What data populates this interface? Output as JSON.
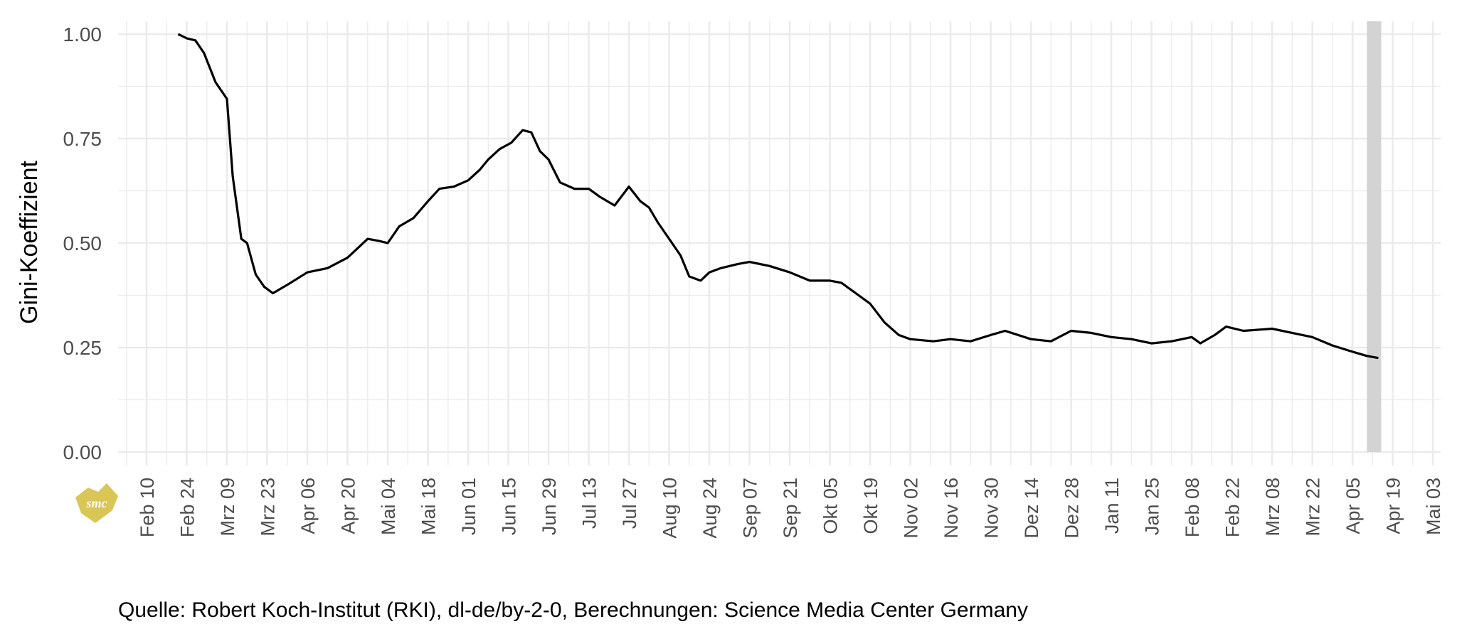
{
  "chart_data": {
    "type": "line",
    "title": "",
    "xlabel": "",
    "ylabel": "Gini-Koeffizient",
    "ylim": [
      0,
      1
    ],
    "yticks": [
      "0.00",
      "0.25",
      "0.50",
      "0.75",
      "1.00"
    ],
    "ytick_values": [
      0,
      0.25,
      0.5,
      0.75,
      1.0
    ],
    "xlim": [
      "2020-02-03",
      "2021-05-10"
    ],
    "grid": true,
    "xtick_dates": [
      "2020-02-10",
      "2020-02-24",
      "2020-03-09",
      "2020-03-23",
      "2020-04-06",
      "2020-04-20",
      "2020-05-04",
      "2020-05-18",
      "2020-06-01",
      "2020-06-15",
      "2020-06-29",
      "2020-07-13",
      "2020-07-27",
      "2020-08-10",
      "2020-08-24",
      "2020-09-07",
      "2020-09-21",
      "2020-10-05",
      "2020-10-19",
      "2020-11-02",
      "2020-11-16",
      "2020-11-30",
      "2020-12-14",
      "2020-12-28",
      "2021-01-11",
      "2021-01-25",
      "2021-02-08",
      "2021-02-22",
      "2021-03-08",
      "2021-03-22",
      "2021-04-05",
      "2021-04-19",
      "2021-05-03"
    ],
    "xtick_labels": [
      "Feb 10",
      "Feb 24",
      "Mrz 09",
      "Mrz 23",
      "Apr 06",
      "Apr 20",
      "Mai 04",
      "Mai 18",
      "Jun 01",
      "Jun 15",
      "Jun 29",
      "Jul 13",
      "Jul 27",
      "Aug 10",
      "Aug 24",
      "Sep 07",
      "Sep 21",
      "Okt 05",
      "Okt 19",
      "Nov 02",
      "Nov 16",
      "Nov 30",
      "Dez 14",
      "Dez 28",
      "Jan 11",
      "Jan 25",
      "Feb 08",
      "Feb 22",
      "Mrz 08",
      "Mrz 22",
      "Apr 05",
      "Apr 19",
      "Mai 03"
    ],
    "shaded_range": [
      "2021-04-10",
      "2021-04-15"
    ],
    "series": [
      {
        "name": "Gini-Koeffizient",
        "color": "#000000",
        "points": [
          [
            "2020-02-21",
            1.0
          ],
          [
            "2020-02-24",
            0.99
          ],
          [
            "2020-02-27",
            0.985
          ],
          [
            "2020-03-01",
            0.955
          ],
          [
            "2020-03-05",
            0.885
          ],
          [
            "2020-03-09",
            0.845
          ],
          [
            "2020-03-11",
            0.66
          ],
          [
            "2020-03-14",
            0.51
          ],
          [
            "2020-03-16",
            0.5
          ],
          [
            "2020-03-19",
            0.425
          ],
          [
            "2020-03-22",
            0.395
          ],
          [
            "2020-03-25",
            0.38
          ],
          [
            "2020-03-30",
            0.4
          ],
          [
            "2020-04-06",
            0.43
          ],
          [
            "2020-04-13",
            0.44
          ],
          [
            "2020-04-20",
            0.465
          ],
          [
            "2020-04-27",
            0.51
          ],
          [
            "2020-05-01",
            0.505
          ],
          [
            "2020-05-04",
            0.5
          ],
          [
            "2020-05-08",
            0.54
          ],
          [
            "2020-05-13",
            0.56
          ],
          [
            "2020-05-18",
            0.6
          ],
          [
            "2020-05-22",
            0.63
          ],
          [
            "2020-05-27",
            0.635
          ],
          [
            "2020-06-01",
            0.65
          ],
          [
            "2020-06-05",
            0.675
          ],
          [
            "2020-06-08",
            0.7
          ],
          [
            "2020-06-12",
            0.725
          ],
          [
            "2020-06-16",
            0.74
          ],
          [
            "2020-06-20",
            0.77
          ],
          [
            "2020-06-23",
            0.765
          ],
          [
            "2020-06-26",
            0.72
          ],
          [
            "2020-06-29",
            0.7
          ],
          [
            "2020-07-03",
            0.645
          ],
          [
            "2020-07-08",
            0.63
          ],
          [
            "2020-07-13",
            0.63
          ],
          [
            "2020-07-17",
            0.61
          ],
          [
            "2020-07-22",
            0.59
          ],
          [
            "2020-07-27",
            0.635
          ],
          [
            "2020-07-31",
            0.6
          ],
          [
            "2020-08-03",
            0.585
          ],
          [
            "2020-08-06",
            0.55
          ],
          [
            "2020-08-10",
            0.51
          ],
          [
            "2020-08-14",
            0.47
          ],
          [
            "2020-08-17",
            0.42
          ],
          [
            "2020-08-21",
            0.41
          ],
          [
            "2020-08-24",
            0.43
          ],
          [
            "2020-08-28",
            0.44
          ],
          [
            "2020-09-03",
            0.45
          ],
          [
            "2020-09-07",
            0.455
          ],
          [
            "2020-09-14",
            0.445
          ],
          [
            "2020-09-21",
            0.43
          ],
          [
            "2020-09-28",
            0.41
          ],
          [
            "2020-10-05",
            0.41
          ],
          [
            "2020-10-09",
            0.405
          ],
          [
            "2020-10-15",
            0.375
          ],
          [
            "2020-10-19",
            0.355
          ],
          [
            "2020-10-24",
            0.31
          ],
          [
            "2020-10-29",
            0.28
          ],
          [
            "2020-11-02",
            0.27
          ],
          [
            "2020-11-10",
            0.265
          ],
          [
            "2020-11-16",
            0.27
          ],
          [
            "2020-11-23",
            0.265
          ],
          [
            "2020-11-30",
            0.28
          ],
          [
            "2020-12-05",
            0.29
          ],
          [
            "2020-12-14",
            0.27
          ],
          [
            "2020-12-21",
            0.265
          ],
          [
            "2020-12-28",
            0.29
          ],
          [
            "2021-01-04",
            0.285
          ],
          [
            "2021-01-11",
            0.275
          ],
          [
            "2021-01-18",
            0.27
          ],
          [
            "2021-01-25",
            0.26
          ],
          [
            "2021-02-01",
            0.265
          ],
          [
            "2021-02-08",
            0.275
          ],
          [
            "2021-02-11",
            0.26
          ],
          [
            "2021-02-16",
            0.28
          ],
          [
            "2021-02-20",
            0.3
          ],
          [
            "2021-02-26",
            0.29
          ],
          [
            "2021-03-08",
            0.295
          ],
          [
            "2021-03-15",
            0.285
          ],
          [
            "2021-03-22",
            0.275
          ],
          [
            "2021-03-29",
            0.255
          ],
          [
            "2021-04-05",
            0.24
          ],
          [
            "2021-04-10",
            0.23
          ],
          [
            "2021-04-14",
            0.225
          ]
        ]
      }
    ]
  },
  "caption": "Quelle: Robert Koch-Institut (RKI), dl-de/by-2-0, Berechnungen: Science Media Center Germany",
  "logo": {
    "text": "SMC",
    "color": "#d6bf45"
  }
}
